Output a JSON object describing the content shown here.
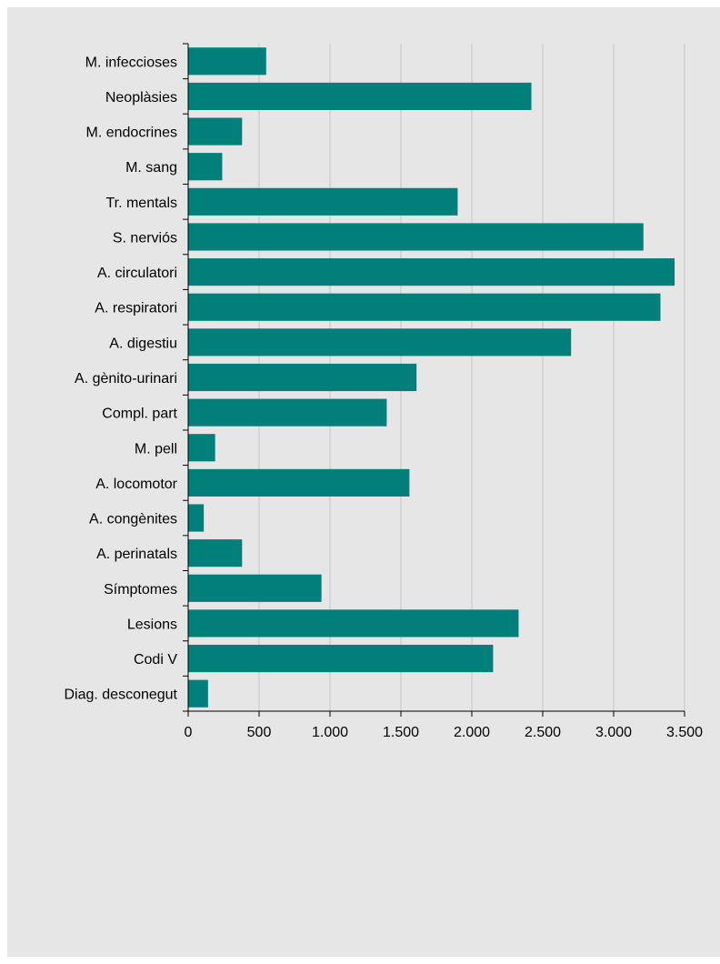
{
  "chart_data": {
    "type": "bar",
    "orientation": "horizontal",
    "title": "",
    "xlabel": "",
    "ylabel": "",
    "categories": [
      "M. infeccioses",
      "Neoplàsies",
      "M. endocrines",
      "M. sang",
      "Tr. mentals",
      "S. nerviós",
      "A. circulatori",
      "A. respiratori",
      "A. digestiu",
      "A. gènito-urinari",
      "Compl. part",
      "M. pell",
      "A. locomotor",
      "A. congènites",
      "A. perinatals",
      "Símptomes",
      "Lesions",
      "Codi V",
      "Diag. desconegut"
    ],
    "values": [
      550,
      2420,
      380,
      240,
      1900,
      3210,
      3430,
      3330,
      2700,
      1610,
      1400,
      190,
      1560,
      110,
      380,
      940,
      2330,
      2150,
      140
    ],
    "xlim": [
      0,
      3500
    ],
    "xticks": [
      0,
      500,
      1000,
      1500,
      2000,
      2500,
      3000,
      3500
    ],
    "xtick_labels": [
      "0",
      "500",
      "1.000",
      "1.500",
      "2.000",
      "2.500",
      "3.000",
      "3.500"
    ],
    "grid": "vertical",
    "legend": "none",
    "colors": {
      "bar": "#007f7b",
      "background": "#e6e6e6",
      "grid": "#c4c4c4",
      "axis": "#000000"
    }
  }
}
